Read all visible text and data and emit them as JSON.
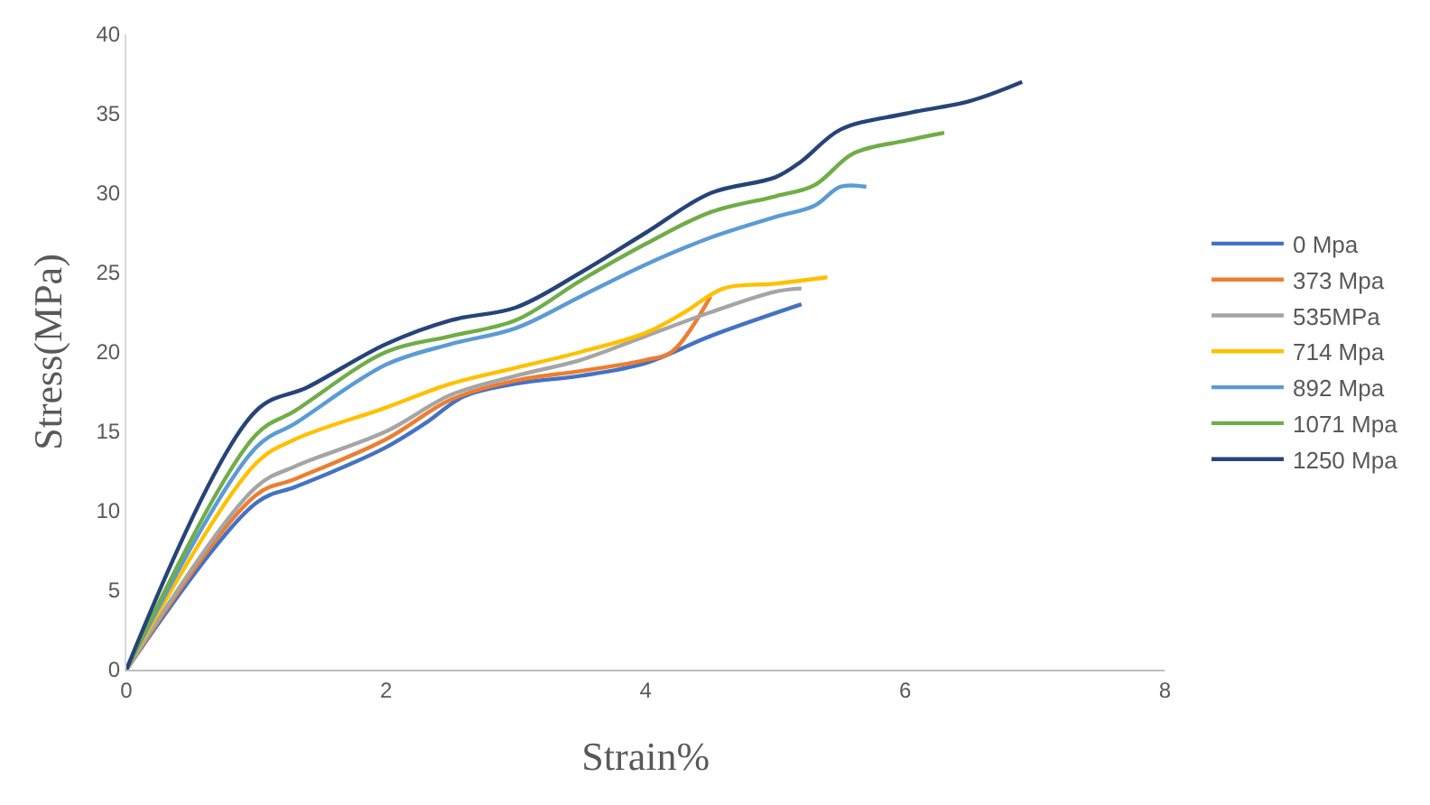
{
  "chart_data": {
    "type": "line",
    "xlabel": "Strain%",
    "ylabel": "Stress(MPa)",
    "xlim": [
      0,
      8
    ],
    "xticks": [
      0,
      2,
      4,
      6,
      8
    ],
    "ylim": [
      0,
      40
    ],
    "yticks": [
      0,
      5,
      10,
      15,
      20,
      25,
      30,
      35,
      40
    ],
    "legend": "right",
    "marker": "none",
    "line_style": "solid",
    "series": [
      {
        "name": "0 Mpa",
        "color": "#4472c4",
        "x": [
          0,
          1,
          1.3,
          1.6,
          2,
          2.3,
          2.6,
          3,
          3.5,
          4,
          4.5,
          5.2
        ],
        "values": [
          0,
          10.5,
          11.5,
          12.5,
          14,
          15.5,
          17.2,
          18,
          18.5,
          19.3,
          21,
          23
        ]
      },
      {
        "name": "373 Mpa",
        "color": "#ed7d31",
        "x": [
          0,
          1,
          1.3,
          2,
          2.5,
          3,
          3.5,
          4,
          4.2,
          4.5
        ],
        "values": [
          0,
          11,
          12,
          14.5,
          17,
          18.2,
          18.8,
          19.5,
          20,
          23.5
        ]
      },
      {
        "name": "535MPa",
        "color": "#a5a5a5",
        "x": [
          0,
          1,
          1.3,
          2,
          2.5,
          3,
          3.5,
          4,
          4.5,
          5,
          5.2
        ],
        "values": [
          0,
          11.5,
          12.8,
          15,
          17.3,
          18.5,
          19.5,
          21,
          22.5,
          23.8,
          24
        ]
      },
      {
        "name": "714 Mpa",
        "color": "#ffc000",
        "x": [
          0,
          1,
          1.3,
          2,
          2.5,
          3,
          3.5,
          4,
          4.3,
          4.6,
          5,
          5.4
        ],
        "values": [
          0,
          13,
          14.5,
          16.5,
          18,
          19,
          20,
          21.2,
          22.5,
          24,
          24.3,
          24.7
        ]
      },
      {
        "name": "892 Mpa",
        "color": "#5b9bd5",
        "x": [
          0,
          1,
          1.3,
          2,
          2.5,
          3,
          3.5,
          4,
          4.5,
          5,
          5.3,
          5.5,
          5.7
        ],
        "values": [
          0,
          14,
          15.5,
          19.2,
          20.5,
          21.5,
          23.5,
          25.5,
          27.2,
          28.5,
          29.2,
          30.4,
          30.4
        ]
      },
      {
        "name": "1071 Mpa",
        "color": "#70ad47",
        "x": [
          0,
          1,
          1.3,
          2,
          2.5,
          3,
          3.5,
          4,
          4.5,
          5,
          5.3,
          5.6,
          6,
          6.3
        ],
        "values": [
          0,
          14.8,
          16.3,
          20,
          21,
          22,
          24.5,
          26.8,
          28.8,
          29.8,
          30.5,
          32.5,
          33.3,
          33.8
        ]
      },
      {
        "name": "1250 Mpa",
        "color": "#264478",
        "x": [
          0,
          1,
          1.4,
          2,
          2.5,
          3,
          3.5,
          4,
          4.5,
          5,
          5.2,
          5.5,
          6,
          6.5,
          6.9
        ],
        "values": [
          0,
          16.3,
          17.8,
          20.5,
          22,
          22.8,
          25,
          27.5,
          30,
          31,
          32,
          34,
          35,
          35.8,
          37
        ]
      }
    ]
  }
}
